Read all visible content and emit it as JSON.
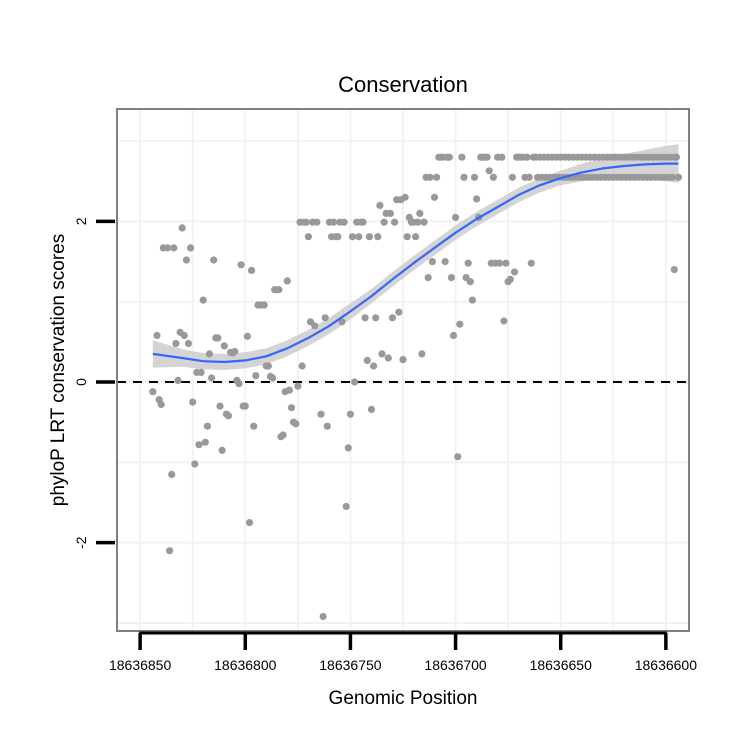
{
  "chart_data": {
    "type": "scatter",
    "title": "Conservation",
    "xlabel": "Genomic Position",
    "ylabel": "phyloP LRT conservation scores",
    "x_reversed": true,
    "xlim": [
      18636861,
      18636589
    ],
    "ylim": [
      -3.1,
      3.4
    ],
    "x_ticks": [
      18636850,
      18636800,
      18636750,
      18636700,
      18636650,
      18636600
    ],
    "x_tick_labels": [
      "18636850",
      "18636800",
      "18636750",
      "18636700",
      "18636650",
      "18636600"
    ],
    "y_ticks": [
      -2,
      0,
      2
    ],
    "y_tick_labels": [
      "-2",
      "0",
      "2"
    ],
    "grid": true,
    "legend": "none",
    "reference_line": {
      "y": 0,
      "style": "dashed",
      "color": "#000000"
    },
    "colors": {
      "points": "#999999",
      "smooth": "#3366FF",
      "ribbon": "#CCCCCC",
      "panel_border": "#7F7F7F",
      "grid": "#F2F2F2"
    },
    "series": [
      {
        "type": "scatter",
        "points": [
          [
            18636844,
            -0.12
          ],
          [
            18636842,
            0.58
          ],
          [
            18636841,
            -0.22
          ],
          [
            18636840,
            -0.28
          ],
          [
            18636839,
            1.67
          ],
          [
            18636837,
            1.67
          ],
          [
            18636836,
            -2.1
          ],
          [
            18636835,
            -1.15
          ],
          [
            18636834,
            1.67
          ],
          [
            18636833,
            0.48
          ],
          [
            18636832,
            0.02
          ],
          [
            18636831,
            0.62
          ],
          [
            18636830,
            1.92
          ],
          [
            18636829,
            0.58
          ],
          [
            18636828,
            1.52
          ],
          [
            18636827,
            0.48
          ],
          [
            18636826,
            1.67
          ],
          [
            18636825,
            -0.25
          ],
          [
            18636824,
            -1.02
          ],
          [
            18636823,
            0.12
          ],
          [
            18636822,
            -0.78
          ],
          [
            18636821,
            0.12
          ],
          [
            18636820,
            1.02
          ],
          [
            18636819,
            -0.75
          ],
          [
            18636818,
            -0.55
          ],
          [
            18636817,
            0.35
          ],
          [
            18636816,
            0.05
          ],
          [
            18636815,
            1.52
          ],
          [
            18636814,
            0.55
          ],
          [
            18636813,
            0.55
          ],
          [
            18636812,
            -0.3
          ],
          [
            18636811,
            -0.85
          ],
          [
            18636810,
            0.45
          ],
          [
            18636809,
            -0.4
          ],
          [
            18636808,
            -0.42
          ],
          [
            18636807,
            0.37
          ],
          [
            18636806,
            0.36
          ],
          [
            18636805,
            0.38
          ],
          [
            18636804,
            0.02
          ],
          [
            18636803,
            -0.02
          ],
          [
            18636802,
            1.46
          ],
          [
            18636801,
            -0.3
          ],
          [
            18636800,
            -0.3
          ],
          [
            18636799,
            0.57
          ],
          [
            18636798,
            -1.75
          ],
          [
            18636797,
            1.39
          ],
          [
            18636796,
            -0.55
          ],
          [
            18636795,
            0.08
          ],
          [
            18636794,
            0.96
          ],
          [
            18636793,
            0.96
          ],
          [
            18636792,
            0.96
          ],
          [
            18636791,
            0.96
          ],
          [
            18636790,
            0.2
          ],
          [
            18636789,
            0.2
          ],
          [
            18636788,
            0.07
          ],
          [
            18636787,
            0.05
          ],
          [
            18636786,
            1.15
          ],
          [
            18636785,
            1.15
          ],
          [
            18636784,
            1.15
          ],
          [
            18636783,
            -0.68
          ],
          [
            18636782,
            -0.66
          ],
          [
            18636781,
            -0.12
          ],
          [
            18636780,
            1.26
          ],
          [
            18636779,
            -0.1
          ],
          [
            18636778,
            -0.32
          ],
          [
            18636777,
            -0.5
          ],
          [
            18636776,
            -0.52
          ],
          [
            18636775,
            -0.05
          ],
          [
            18636774,
            1.99
          ],
          [
            18636773,
            0.2
          ],
          [
            18636772,
            1.99
          ],
          [
            18636771,
            1.99
          ],
          [
            18636770,
            1.81
          ],
          [
            18636769,
            0.75
          ],
          [
            18636768,
            1.99
          ],
          [
            18636767,
            0.7
          ],
          [
            18636766,
            1.99
          ],
          [
            18636764,
            -0.4
          ],
          [
            18636763,
            -2.92
          ],
          [
            18636762,
            0.8
          ],
          [
            18636761,
            -0.55
          ],
          [
            18636760,
            1.99
          ],
          [
            18636759,
            1.81
          ],
          [
            18636758,
            1.99
          ],
          [
            18636757,
            1.81
          ],
          [
            18636756,
            1.81
          ],
          [
            18636755,
            1.99
          ],
          [
            18636754,
            0.75
          ],
          [
            18636753,
            1.99
          ],
          [
            18636752,
            -1.55
          ],
          [
            18636751,
            -0.82
          ],
          [
            18636750,
            -0.4
          ],
          [
            18636749,
            1.81
          ],
          [
            18636748,
            0.0
          ],
          [
            18636747,
            1.99
          ],
          [
            18636746,
            1.81
          ],
          [
            18636745,
            1.99
          ],
          [
            18636744,
            1.99
          ],
          [
            18636743,
            0.8
          ],
          [
            18636742,
            0.27
          ],
          [
            18636741,
            1.81
          ],
          [
            18636740,
            -0.34
          ],
          [
            18636739,
            0.2
          ],
          [
            18636738,
            0.8
          ],
          [
            18636737,
            1.81
          ],
          [
            18636736,
            2.2
          ],
          [
            18636735,
            0.35
          ],
          [
            18636734,
            1.99
          ],
          [
            18636733,
            2.1
          ],
          [
            18636732,
            0.3
          ],
          [
            18636731,
            2.1
          ],
          [
            18636730,
            0.8
          ],
          [
            18636729,
            1.99
          ],
          [
            18636728,
            2.27
          ],
          [
            18636727,
            0.87
          ],
          [
            18636726,
            2.27
          ],
          [
            18636725,
            0.28
          ],
          [
            18636724,
            2.3
          ],
          [
            18636723,
            1.81
          ],
          [
            18636722,
            2.05
          ],
          [
            18636721,
            1.99
          ],
          [
            18636720,
            1.99
          ],
          [
            18636719,
            1.81
          ],
          [
            18636718,
            1.99
          ],
          [
            18636717,
            2.1
          ],
          [
            18636716,
            0.35
          ],
          [
            18636715,
            1.99
          ],
          [
            18636714,
            2.55
          ],
          [
            18636713,
            1.3
          ],
          [
            18636712,
            2.55
          ],
          [
            18636711,
            1.5
          ],
          [
            18636710,
            2.3
          ],
          [
            18636709,
            2.55
          ],
          [
            18636708,
            2.8
          ],
          [
            18636707,
            2.8
          ],
          [
            18636706,
            2.8
          ],
          [
            18636705,
            1.5
          ],
          [
            18636704,
            2.8
          ],
          [
            18636703,
            2.8
          ],
          [
            18636702,
            1.3
          ],
          [
            18636701,
            0.58
          ],
          [
            18636700,
            2.05
          ],
          [
            18636699,
            -0.93
          ],
          [
            18636698,
            0.72
          ],
          [
            18636697,
            2.8
          ],
          [
            18636696,
            2.55
          ],
          [
            18636695,
            1.3
          ],
          [
            18636694,
            1.48
          ],
          [
            18636693,
            1.25
          ],
          [
            18636692,
            1.02
          ],
          [
            18636691,
            2.55
          ],
          [
            18636690,
            2.28
          ],
          [
            18636689,
            2.05
          ],
          [
            18636688,
            2.8
          ],
          [
            18636687,
            2.8
          ],
          [
            18636686,
            2.8
          ],
          [
            18636685,
            2.8
          ],
          [
            18636684,
            2.63
          ],
          [
            18636683,
            1.48
          ],
          [
            18636682,
            2.55
          ],
          [
            18636681,
            1.48
          ],
          [
            18636680,
            2.8
          ],
          [
            18636679,
            1.48
          ],
          [
            18636678,
            2.8
          ],
          [
            18636677,
            0.76
          ],
          [
            18636676,
            1.48
          ],
          [
            18636675,
            1.25
          ],
          [
            18636674,
            1.28
          ],
          [
            18636673,
            2.55
          ],
          [
            18636672,
            1.37
          ],
          [
            18636671,
            2.8
          ],
          [
            18636670,
            2.8
          ],
          [
            18636669,
            2.8
          ],
          [
            18636668,
            2.8
          ],
          [
            18636667,
            2.55
          ],
          [
            18636666,
            2.8
          ],
          [
            18636665,
            2.55
          ],
          [
            18636664,
            1.48
          ],
          [
            18636663,
            2.8
          ],
          [
            18636662,
            2.8
          ],
          [
            18636661,
            2.55
          ],
          [
            18636660,
            2.8
          ],
          [
            18636659,
            2.55
          ],
          [
            18636658,
            2.8
          ],
          [
            18636657,
            2.55
          ],
          [
            18636656,
            2.8
          ],
          [
            18636655,
            2.55
          ],
          [
            18636654,
            2.8
          ],
          [
            18636653,
            2.55
          ],
          [
            18636652,
            2.8
          ],
          [
            18636651,
            2.55
          ],
          [
            18636650,
            2.8
          ],
          [
            18636649,
            2.55
          ],
          [
            18636648,
            2.8
          ],
          [
            18636647,
            2.55
          ],
          [
            18636646,
            2.8
          ],
          [
            18636645,
            2.55
          ],
          [
            18636644,
            2.8
          ],
          [
            18636643,
            2.55
          ],
          [
            18636642,
            2.8
          ],
          [
            18636641,
            2.55
          ],
          [
            18636640,
            2.8
          ],
          [
            18636639,
            2.55
          ],
          [
            18636638,
            2.8
          ],
          [
            18636637,
            2.55
          ],
          [
            18636636,
            2.8
          ],
          [
            18636635,
            2.55
          ],
          [
            18636634,
            2.8
          ],
          [
            18636633,
            2.55
          ],
          [
            18636632,
            2.8
          ],
          [
            18636631,
            2.55
          ],
          [
            18636630,
            2.8
          ],
          [
            18636629,
            2.55
          ],
          [
            18636628,
            2.8
          ],
          [
            18636627,
            2.55
          ],
          [
            18636626,
            2.8
          ],
          [
            18636625,
            2.55
          ],
          [
            18636624,
            2.8
          ],
          [
            18636623,
            2.55
          ],
          [
            18636622,
            2.8
          ],
          [
            18636621,
            2.55
          ],
          [
            18636620,
            2.8
          ],
          [
            18636619,
            2.55
          ],
          [
            18636618,
            2.8
          ],
          [
            18636617,
            2.55
          ],
          [
            18636616,
            2.8
          ],
          [
            18636615,
            2.55
          ],
          [
            18636614,
            2.8
          ],
          [
            18636613,
            2.55
          ],
          [
            18636612,
            2.8
          ],
          [
            18636611,
            2.55
          ],
          [
            18636610,
            2.8
          ],
          [
            18636609,
            2.55
          ],
          [
            18636608,
            2.8
          ],
          [
            18636607,
            2.55
          ],
          [
            18636606,
            2.8
          ],
          [
            18636605,
            2.55
          ],
          [
            18636604,
            2.8
          ],
          [
            18636603,
            2.55
          ],
          [
            18636602,
            2.8
          ],
          [
            18636601,
            2.55
          ],
          [
            18636600,
            2.8
          ],
          [
            18636599,
            2.55
          ],
          [
            18636598,
            2.8
          ],
          [
            18636597,
            2.55
          ],
          [
            18636596,
            2.8
          ],
          [
            18636595,
            2.8
          ],
          [
            18636594,
            2.55
          ],
          [
            18636596,
            1.4
          ]
        ]
      },
      {
        "type": "line",
        "smooth": true,
        "x": [
          18636844,
          18636830,
          18636820,
          18636810,
          18636800,
          18636790,
          18636780,
          18636770,
          18636760,
          18636750,
          18636740,
          18636730,
          18636720,
          18636710,
          18636700,
          18636690,
          18636680,
          18636670,
          18636660,
          18636650,
          18636640,
          18636630,
          18636620,
          18636610,
          18636600,
          18636594
        ],
        "y": [
          0.35,
          0.3,
          0.26,
          0.25,
          0.27,
          0.32,
          0.42,
          0.55,
          0.7,
          0.88,
          1.07,
          1.28,
          1.48,
          1.67,
          1.86,
          2.03,
          2.18,
          2.33,
          2.45,
          2.54,
          2.61,
          2.66,
          2.69,
          2.71,
          2.72,
          2.72
        ],
        "lower": [
          0.18,
          0.19,
          0.16,
          0.15,
          0.17,
          0.22,
          0.32,
          0.45,
          0.6,
          0.78,
          0.98,
          1.19,
          1.39,
          1.58,
          1.77,
          1.94,
          2.09,
          2.24,
          2.36,
          2.45,
          2.5,
          2.53,
          2.54,
          2.53,
          2.5,
          2.48
        ],
        "upper": [
          0.52,
          0.41,
          0.36,
          0.35,
          0.37,
          0.42,
          0.52,
          0.65,
          0.8,
          0.98,
          1.16,
          1.37,
          1.57,
          1.76,
          1.95,
          2.12,
          2.27,
          2.42,
          2.54,
          2.63,
          2.72,
          2.79,
          2.84,
          2.89,
          2.94,
          2.96
        ]
      }
    ]
  }
}
